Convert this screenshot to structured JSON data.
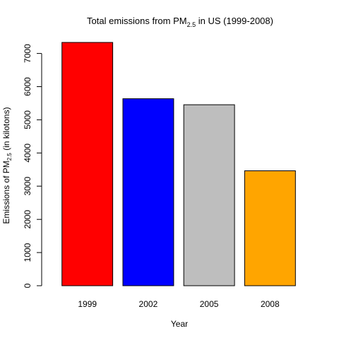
{
  "chart_data": {
    "type": "bar",
    "title": {
      "prefix": "Total emissions from PM",
      "subscript": "2.5",
      "suffix": " in US (1999-2008)"
    },
    "xlabel": "Year",
    "ylabel": {
      "prefix": "Emissions of PM",
      "subscript": "2.5",
      "suffix": " (in kilotons)"
    },
    "categories": [
      "1999",
      "2002",
      "2005",
      "2008"
    ],
    "values": [
      7332,
      5635,
      5454,
      3464
    ],
    "colors": [
      "#ff0000",
      "#0000ff",
      "#bebebe",
      "#ffa500"
    ],
    "ylim": [
      0,
      7332
    ],
    "yticks": [
      0,
      1000,
      2000,
      3000,
      4000,
      5000,
      6000,
      7000
    ],
    "ytick_labels": [
      "0",
      "1000",
      "2000",
      "3000",
      "4000",
      "5000",
      "6000",
      "7000"
    ],
    "grid": false,
    "legend": "none"
  }
}
